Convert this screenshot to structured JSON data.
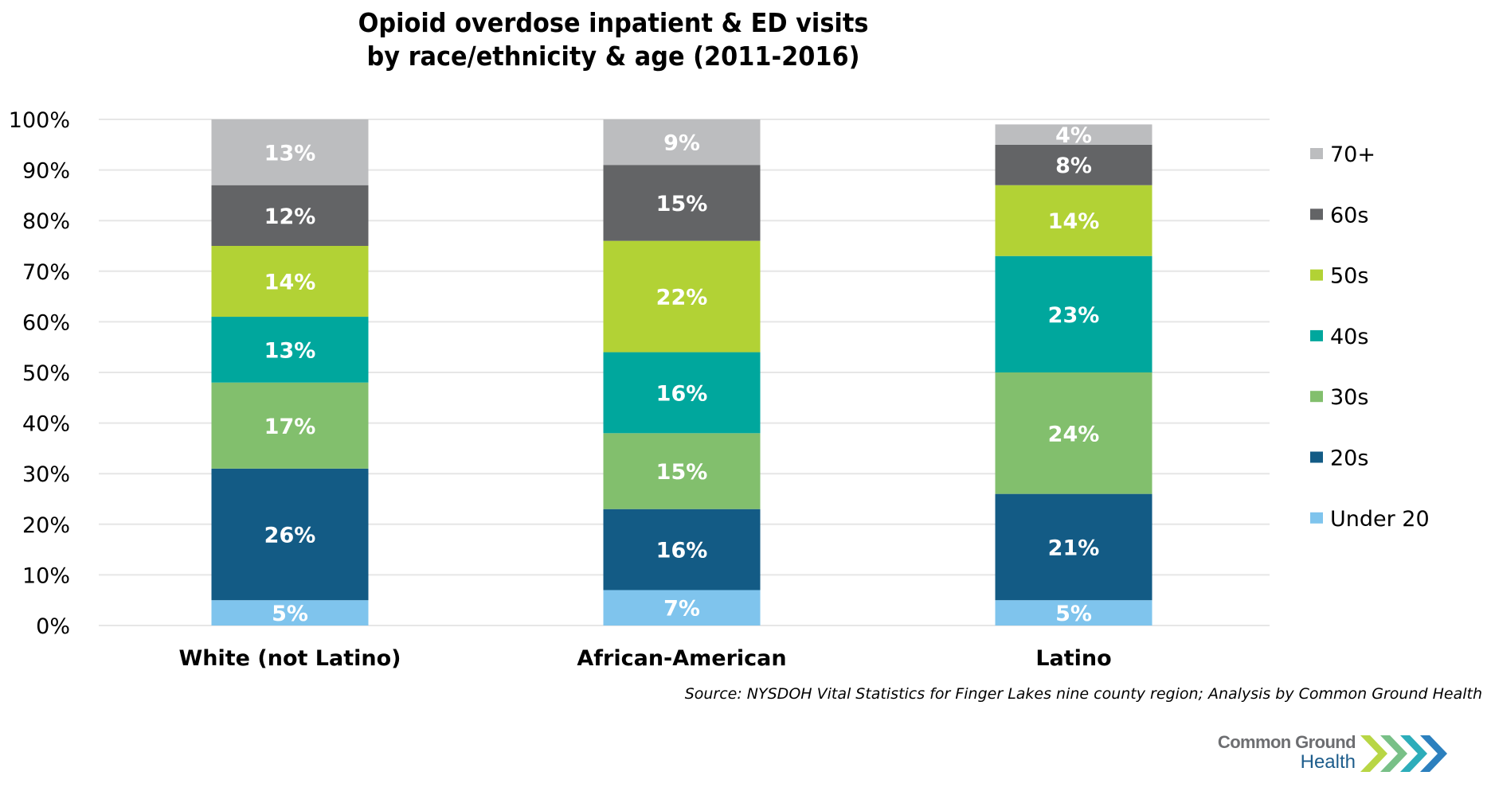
{
  "title_lines": [
    "Opioid overdose inpatient & ED visits",
    "by race/ethnicity & age (2011-2016)"
  ],
  "chart_data": {
    "type": "bar",
    "stacked": true,
    "title": "Opioid overdose inpatient & ED visits by race/ethnicity & age (2011-2016)",
    "xlabel": "",
    "ylabel": "",
    "ylim": [
      0,
      100
    ],
    "y_ticks": [
      "0%",
      "10%",
      "20%",
      "30%",
      "40%",
      "50%",
      "60%",
      "70%",
      "80%",
      "90%",
      "100%"
    ],
    "grid": true,
    "legend_position": "right",
    "categories": [
      "White (not Latino)",
      "African-American",
      "Latino"
    ],
    "series": [
      {
        "name": "Under 20",
        "color": "#7fc4ed",
        "values": [
          5,
          7,
          5
        ],
        "labels": [
          "5%",
          "7%",
          "5%"
        ]
      },
      {
        "name": "20s",
        "color": "#135b85",
        "values": [
          26,
          16,
          21
        ],
        "labels": [
          "26%",
          "16%",
          "21%"
        ]
      },
      {
        "name": "30s",
        "color": "#82bf6d",
        "values": [
          17,
          15,
          24
        ],
        "labels": [
          "17%",
          "15%",
          "24%"
        ]
      },
      {
        "name": "40s",
        "color": "#00a79d",
        "values": [
          13,
          16,
          23
        ],
        "labels": [
          "13%",
          "16%",
          "23%"
        ]
      },
      {
        "name": "50s",
        "color": "#b2d235",
        "values": [
          14,
          22,
          14
        ],
        "labels": [
          "14%",
          "22%",
          "14%"
        ]
      },
      {
        "name": "60s",
        "color": "#636466",
        "values": [
          12,
          15,
          8
        ],
        "labels": [
          "12%",
          "15%",
          "8%"
        ]
      },
      {
        "name": "70+",
        "color": "#bcbdbf",
        "values": [
          13,
          9,
          4
        ],
        "labels": [
          "13%",
          "9%",
          "4%"
        ]
      }
    ],
    "legend_order": [
      "70+",
      "60s",
      "50s",
      "40s",
      "30s",
      "20s",
      "Under 20"
    ]
  },
  "source_note": "Source: NYSDOH Vital Statistics for Finger Lakes nine county region; Analysis by Common Ground Health",
  "logo": {
    "line1": "Common Ground",
    "line2": "Health",
    "chevron_colors": [
      "#b2d235",
      "#6dbb7d",
      "#1ba6b4",
      "#1a75b8",
      "#175a8c"
    ]
  },
  "colors": {
    "gridline": "#e6e6e6",
    "segment_label": "#ffffff"
  }
}
